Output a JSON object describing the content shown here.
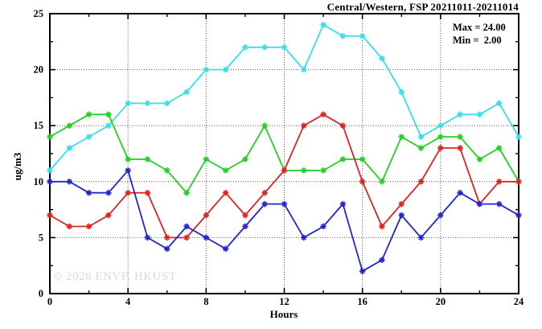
{
  "title": "Central/Western, FSP 20211011-20211014",
  "annotation": {
    "max_label": "Max = 24.00",
    "min_label": "Min =  2.00"
  },
  "watermark": "© 2026 ENVF, HKUST",
  "chart_data": {
    "type": "line",
    "title": "Central/Western, FSP 20211011-20211014",
    "xlabel": "Hours",
    "ylabel": "ug/m3",
    "xlim": [
      0,
      24
    ],
    "ylim": [
      0,
      25
    ],
    "x_major_ticks": [
      0,
      4,
      8,
      12,
      16,
      20,
      24
    ],
    "x_minor_ticks": [
      2,
      6,
      10,
      14,
      18,
      22
    ],
    "y_major_ticks": [
      0,
      5,
      10,
      15,
      20,
      25
    ],
    "y_minor_ticks": [
      2.5,
      7.5,
      12.5,
      17.5,
      22.5
    ],
    "grid_x": [
      4,
      8,
      12,
      16,
      20
    ],
    "grid_y": [
      5,
      10,
      15,
      20
    ],
    "grid_style": "dotted",
    "legend_position": "none",
    "annotations": [
      "Max = 24.00",
      "Min =  2.00"
    ],
    "x": [
      0,
      1,
      2,
      3,
      4,
      5,
      6,
      7,
      8,
      9,
      10,
      11,
      12,
      13,
      14,
      15,
      16,
      17,
      18,
      19,
      20,
      21,
      22,
      23,
      24
    ],
    "series": [
      {
        "name": "cyan-series",
        "color": "#35e0e8",
        "values": [
          11,
          13,
          14,
          15,
          17,
          17,
          17,
          18,
          20,
          20,
          22,
          22,
          22,
          20,
          24,
          23,
          23,
          21,
          18,
          14,
          15,
          16,
          16,
          17,
          14
        ]
      },
      {
        "name": "green-series",
        "color": "#21d121",
        "values": [
          14,
          15,
          16,
          16,
          12,
          12,
          11,
          9,
          12,
          11,
          12,
          15,
          11,
          11,
          11,
          12,
          12,
          10,
          14,
          13,
          14,
          14,
          12,
          13,
          10
        ]
      },
      {
        "name": "red-series",
        "color": "#dd2222",
        "values": [
          7,
          6,
          6,
          7,
          9,
          9,
          5,
          5,
          7,
          9,
          7,
          9,
          11,
          15,
          16,
          15,
          10,
          6,
          8,
          10,
          13,
          13,
          8,
          10,
          10
        ]
      },
      {
        "name": "blue-series",
        "color": "#2424cc",
        "values": [
          10,
          10,
          9,
          9,
          11,
          5,
          4,
          6,
          5,
          4,
          6,
          8,
          8,
          5,
          6,
          8,
          2,
          3,
          7,
          5,
          7,
          9,
          8,
          8,
          7
        ]
      }
    ]
  }
}
